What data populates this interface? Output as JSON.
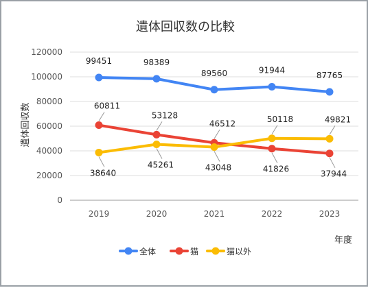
{
  "chart_data": {
    "type": "line",
    "title": "遺体回収数の比較",
    "xlabel": "年度",
    "ylabel": "遺体回収数",
    "categories": [
      "2019",
      "2020",
      "2021",
      "2022",
      "2023"
    ],
    "ylim": [
      0,
      120000
    ],
    "yticks": [
      0,
      20000,
      40000,
      60000,
      80000,
      100000,
      120000
    ],
    "grid": true,
    "legend_position": "bottom",
    "series": [
      {
        "name": "全体",
        "color": "#4285f4",
        "values": [
          99451,
          98389,
          89560,
          91944,
          87765
        ]
      },
      {
        "name": "猫",
        "color": "#ea4335",
        "values": [
          60811,
          53128,
          46512,
          41826,
          37944
        ]
      },
      {
        "name": "猫以外",
        "color": "#fbbc04",
        "values": [
          38640,
          45261,
          43048,
          50118,
          49821
        ]
      }
    ]
  }
}
